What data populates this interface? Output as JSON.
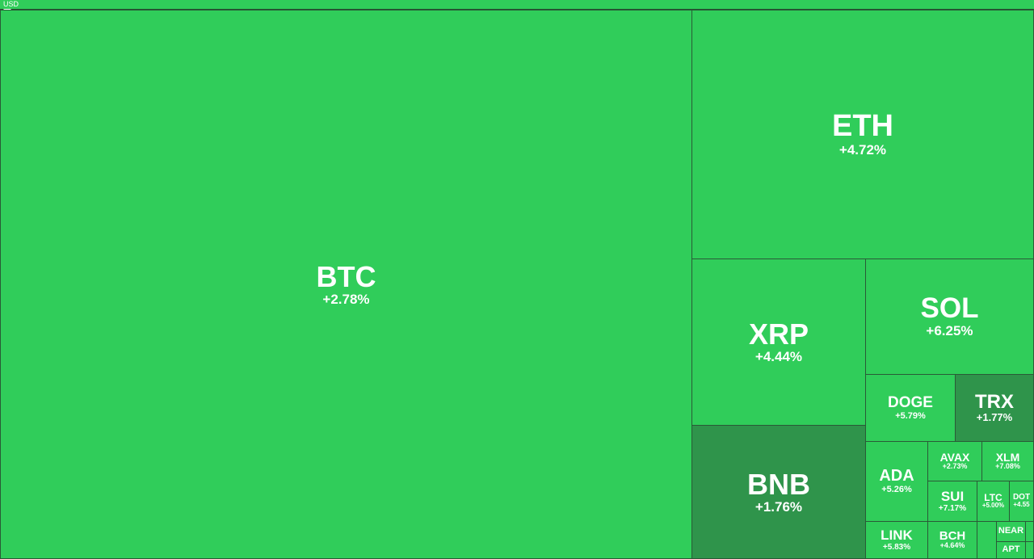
{
  "header": {
    "currency": "USD"
  },
  "colors": {
    "strong_gain": "#30cd5a",
    "mild_gain": "#2f944b",
    "border": "#2a5a37"
  },
  "tiles": [
    {
      "symbol": "BTC",
      "change": "+2.78%"
    },
    {
      "symbol": "ETH",
      "change": "+4.72%"
    },
    {
      "symbol": "XRP",
      "change": "+4.44%"
    },
    {
      "symbol": "SOL",
      "change": "+6.25%"
    },
    {
      "symbol": "BNB",
      "change": "+1.76%"
    },
    {
      "symbol": "DOGE",
      "change": "+5.79%"
    },
    {
      "symbol": "TRX",
      "change": "+1.77%"
    },
    {
      "symbol": "ADA",
      "change": "+5.26%"
    },
    {
      "symbol": "AVAX",
      "change": "+2.73%"
    },
    {
      "symbol": "XLM",
      "change": "+7.08%"
    },
    {
      "symbol": "SUI",
      "change": "+7.17%"
    },
    {
      "symbol": "LTC",
      "change": "+5.00%"
    },
    {
      "symbol": "DOT",
      "change": "+4.55"
    },
    {
      "symbol": "LINK",
      "change": "+5.83%"
    },
    {
      "symbol": "BCH",
      "change": "+4.64%"
    },
    {
      "symbol": "",
      "change": ""
    },
    {
      "symbol": "NEAR",
      "change": ""
    },
    {
      "symbol": "",
      "change": ""
    },
    {
      "symbol": "APT",
      "change": ""
    },
    {
      "symbol": "",
      "change": ""
    }
  ]
}
